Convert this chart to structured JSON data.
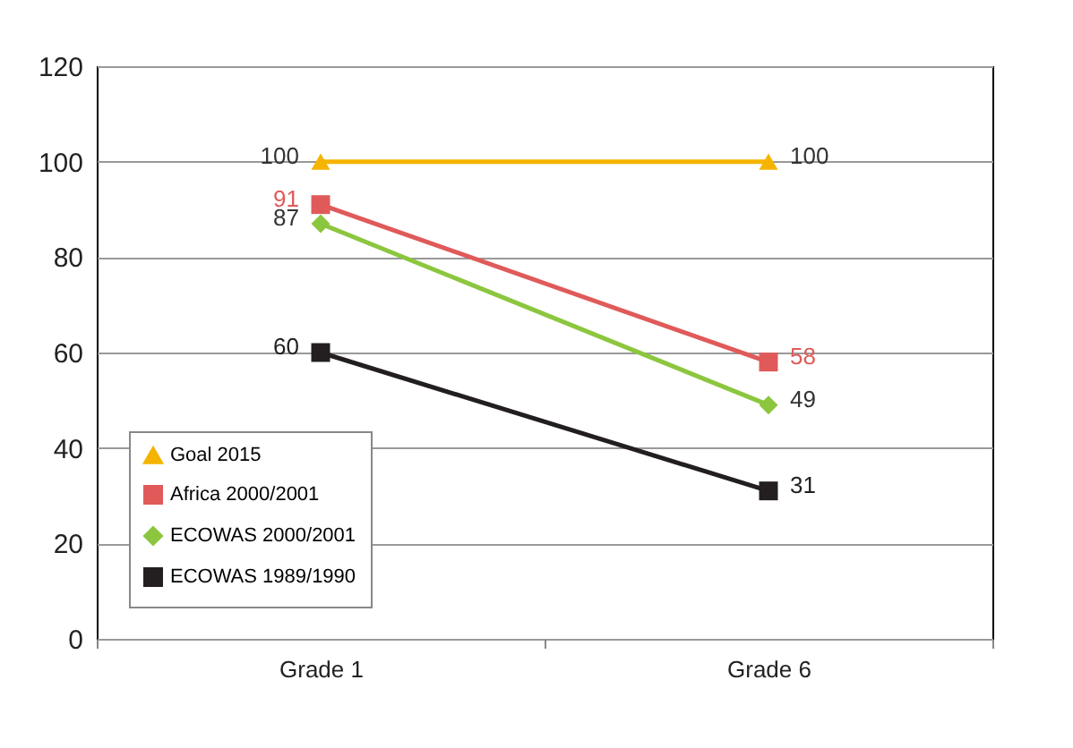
{
  "chart_data": {
    "type": "line",
    "categories": [
      "Grade 1",
      "Grade 6"
    ],
    "series": [
      {
        "name": "Goal 2015",
        "color": "#f5b400",
        "marker": "triangle",
        "values": [
          100,
          100
        ]
      },
      {
        "name": "Africa 2000/2001",
        "color": "#e05a5a",
        "marker": "square",
        "values": [
          91,
          58
        ]
      },
      {
        "name": "ECOWAS 2000/2001",
        "color": "#8cc63f",
        "marker": "diamond",
        "values": [
          87,
          49
        ]
      },
      {
        "name": "ECOWAS 1989/1990",
        "color": "#231f20",
        "marker": "square",
        "values": [
          60,
          31
        ]
      }
    ],
    "ylim": [
      0,
      120
    ],
    "yticks": [
      0,
      20,
      40,
      60,
      80,
      100,
      120
    ],
    "grid": "y",
    "legend": "bottom left",
    "data_labels": true
  }
}
